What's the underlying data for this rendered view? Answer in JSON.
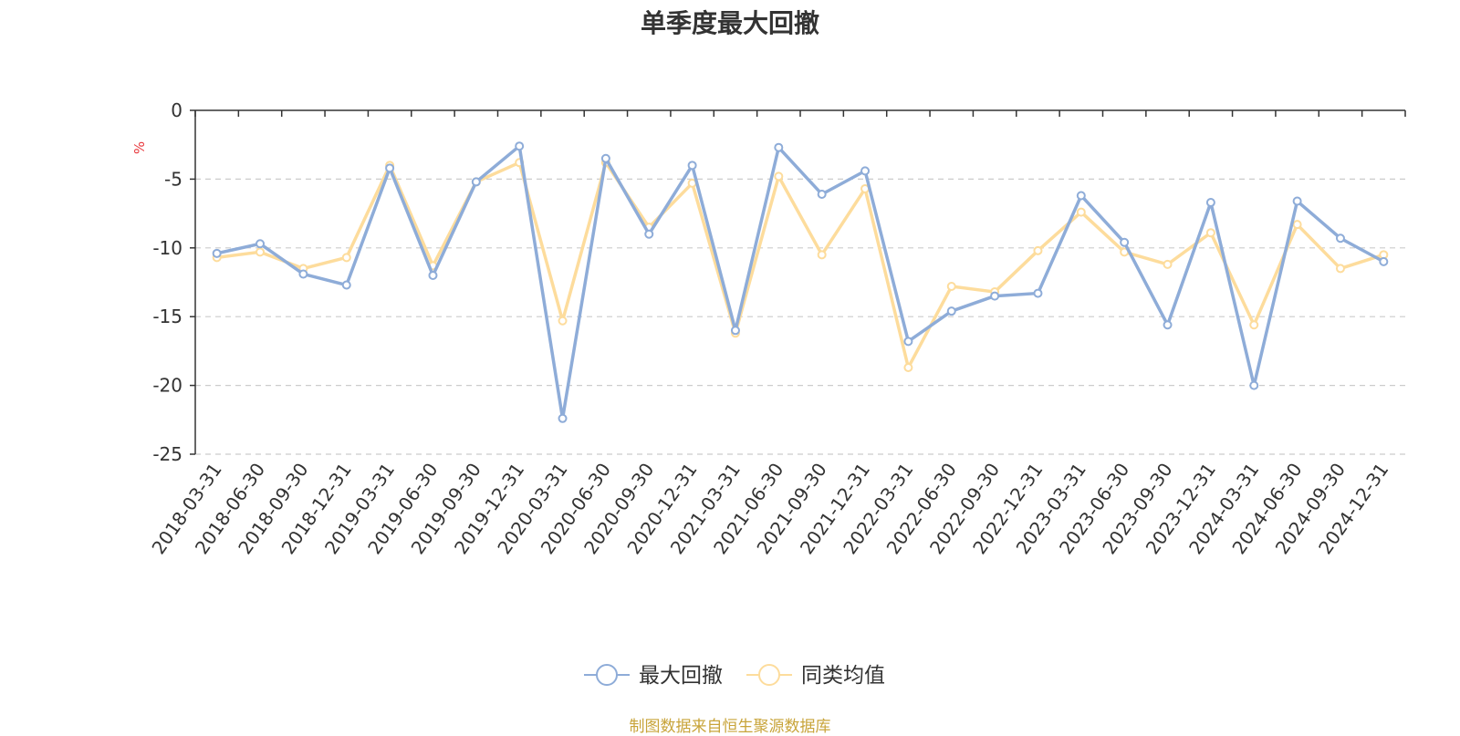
{
  "chart_data": {
    "type": "line",
    "title": "单季度最大回撤",
    "ylabel": "%",
    "ylim": [
      -25,
      0
    ],
    "yticks": [
      0,
      -5,
      -10,
      -15,
      -20,
      -25
    ],
    "ytick_labels": [
      "0",
      "-5",
      "-10",
      "-15",
      "-20",
      "-25"
    ],
    "grid": true,
    "legend_position": "bottom-center",
    "categories": [
      "2018-03-31",
      "2018-06-30",
      "2018-09-30",
      "2018-12-31",
      "2019-03-31",
      "2019-06-30",
      "2019-09-30",
      "2019-12-31",
      "2020-03-31",
      "2020-06-30",
      "2020-09-30",
      "2020-12-31",
      "2021-03-31",
      "2021-06-30",
      "2021-09-30",
      "2021-12-31",
      "2022-03-31",
      "2022-06-30",
      "2022-09-30",
      "2022-12-31",
      "2023-03-31",
      "2023-06-30",
      "2023-09-30",
      "2023-12-31",
      "2024-03-31",
      "2024-06-30",
      "2024-09-30",
      "2024-12-31"
    ],
    "series": [
      {
        "name": "最大回撤",
        "color": "#8eacd8",
        "values": [
          -10.4,
          -9.7,
          -11.9,
          -12.7,
          -4.2,
          -12.0,
          -5.2,
          -2.6,
          -22.4,
          -3.5,
          -9.0,
          -4.0,
          -16.0,
          -2.7,
          -6.1,
          -4.4,
          -16.8,
          -14.6,
          -13.5,
          -13.3,
          -6.2,
          -9.6,
          -15.6,
          -6.7,
          -20.0,
          -6.6,
          -9.3,
          -11.0
        ]
      },
      {
        "name": "同类均值",
        "color": "#fddc9c",
        "values": [
          -10.7,
          -10.3,
          -11.5,
          -10.7,
          -4.0,
          -11.3,
          -5.2,
          -3.8,
          -15.3,
          -3.8,
          -8.5,
          -5.3,
          -16.2,
          -4.8,
          -10.5,
          -5.7,
          -18.7,
          -12.8,
          -13.2,
          -10.2,
          -7.4,
          -10.3,
          -11.2,
          -8.9,
          -15.6,
          -8.3,
          -11.5,
          -10.5
        ]
      }
    ]
  },
  "footer": "制图数据来自恒生聚源数据库"
}
